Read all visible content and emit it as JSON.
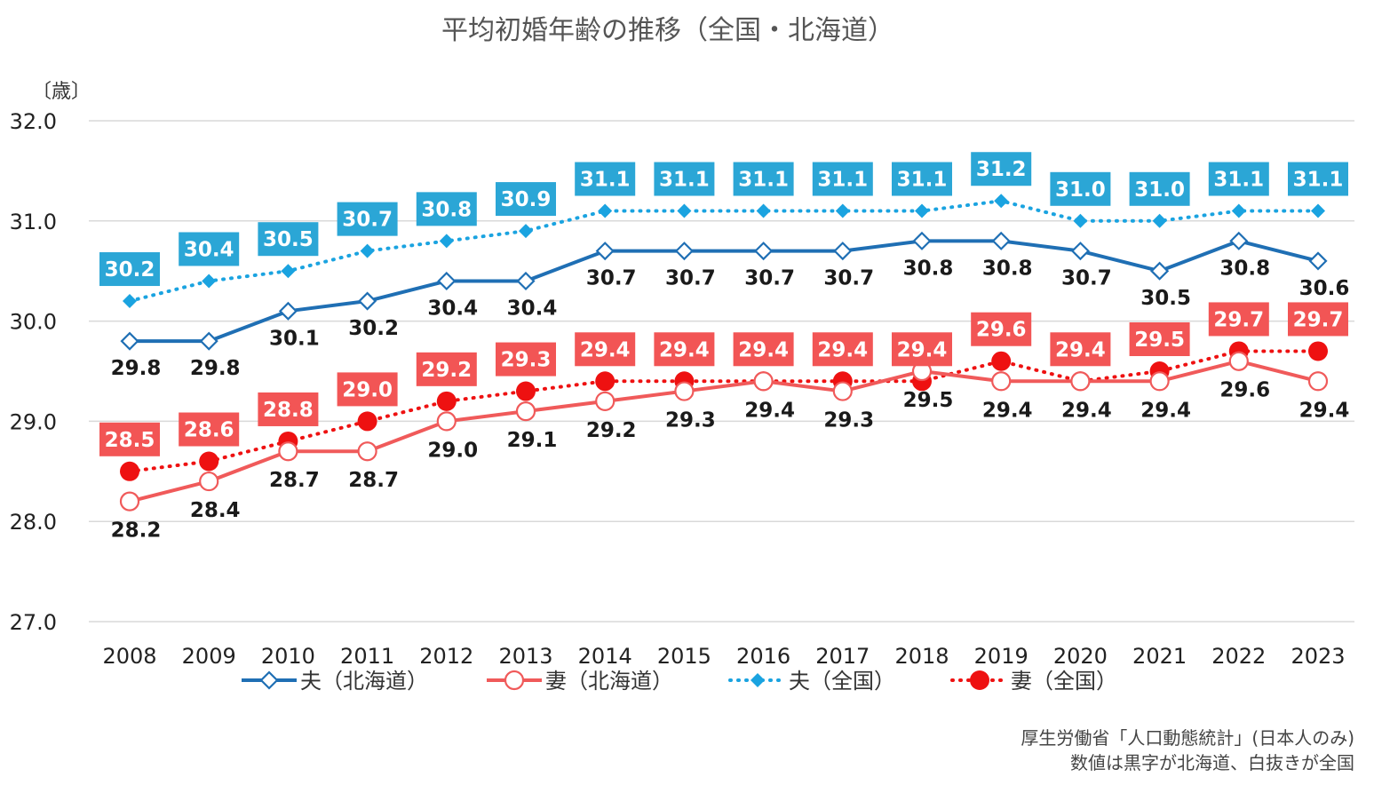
{
  "chart_data": {
    "type": "line",
    "title": "平均初婚年齢の推移（全国・北海道）",
    "ylabel": "〔歳〕",
    "xlabel": "",
    "ylim": [
      27.0,
      32.0
    ],
    "yticks": [
      "32.0",
      "31.0",
      "30.0",
      "29.0",
      "28.0",
      "27.0"
    ],
    "grid": true,
    "legend_position": "bottom",
    "categories": [
      "2008",
      "2009",
      "2010",
      "2011",
      "2012",
      "2013",
      "2014",
      "2015",
      "2016",
      "2017",
      "2018",
      "2019",
      "2020",
      "2021",
      "2022",
      "2023"
    ],
    "series": [
      {
        "name": "夫（北海道）",
        "color": "#1f6fb4",
        "style": "solid",
        "marker": "open-diamond",
        "values": [
          29.8,
          29.8,
          30.1,
          30.2,
          30.4,
          30.4,
          30.7,
          30.7,
          30.7,
          30.7,
          30.8,
          30.8,
          30.7,
          30.5,
          30.8,
          30.6
        ],
        "labels": [
          "29.8",
          "29.8",
          "30.1",
          "30.2",
          "30.4",
          "30.4",
          "30.7",
          "30.7",
          "30.7",
          "30.7",
          "30.8",
          "30.8",
          "30.7",
          "30.5",
          "30.8",
          "30.6"
        ]
      },
      {
        "name": "妻（北海道）",
        "color": "#f05a5a",
        "style": "solid",
        "marker": "open-circle",
        "values": [
          28.2,
          28.4,
          28.7,
          28.7,
          29.0,
          29.1,
          29.2,
          29.3,
          29.4,
          29.3,
          29.5,
          29.4,
          29.4,
          29.4,
          29.6,
          29.4
        ],
        "labels": [
          "28.2",
          "28.4",
          "28.7",
          "28.7",
          "29.0",
          "29.1",
          "29.2",
          "29.3",
          "29.4",
          "29.3",
          "29.5",
          "29.4",
          "29.4",
          "29.4",
          "29.6",
          "29.4"
        ]
      },
      {
        "name": "夫（全国）",
        "color": "#1aa3e0",
        "label_bg": "#2ba6d6",
        "style": "dotted",
        "marker": "filled-diamond",
        "values": [
          30.2,
          30.4,
          30.5,
          30.7,
          30.8,
          30.9,
          31.1,
          31.1,
          31.1,
          31.1,
          31.1,
          31.2,
          31.0,
          31.0,
          31.1,
          31.1
        ],
        "labels": [
          "30.2",
          "30.4",
          "30.5",
          "30.7",
          "30.8",
          "30.9",
          "31.1",
          "31.1",
          "31.1",
          "31.1",
          "31.1",
          "31.2",
          "31.0",
          "31.0",
          "31.1",
          "31.1"
        ]
      },
      {
        "name": "妻（全国）",
        "color": "#ee1111",
        "label_bg": "#f25555",
        "style": "dotted",
        "marker": "filled-circle",
        "values": [
          28.5,
          28.6,
          28.8,
          29.0,
          29.2,
          29.3,
          29.4,
          29.4,
          29.4,
          29.4,
          29.4,
          29.6,
          29.4,
          29.5,
          29.7,
          29.7
        ],
        "labels": [
          "28.5",
          "28.6",
          "28.8",
          "29.0",
          "29.2",
          "29.3",
          "29.4",
          "29.4",
          "29.4",
          "29.4",
          "29.4",
          "29.6",
          "29.4",
          "29.5",
          "29.7",
          "29.7"
        ]
      }
    ],
    "source_lines": [
      "厚生労働省「人口動態統計」(日本人のみ)",
      "数値は黒字が北海道、白抜きが全国"
    ]
  }
}
